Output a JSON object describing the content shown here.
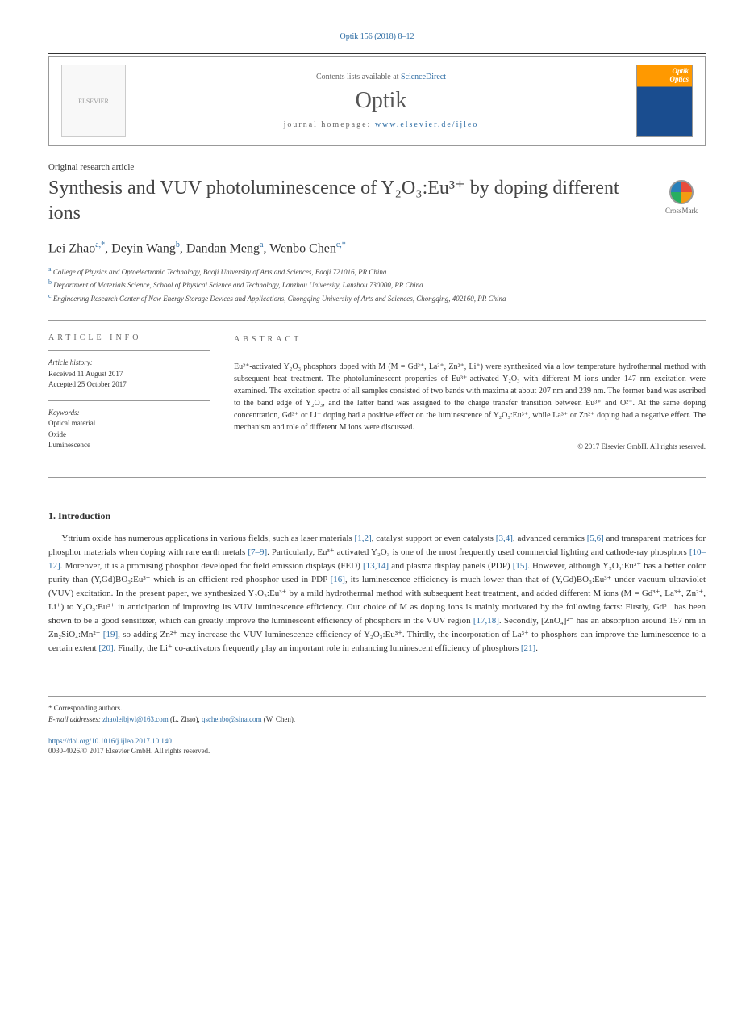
{
  "top_reference": "Optik 156 (2018) 8–12",
  "header": {
    "contents_text": "Contents lists available at ",
    "contents_link": "ScienceDirect",
    "journal": "Optik",
    "homepage_label": "journal homepage: ",
    "homepage_url": "www.elsevier.de/ijleo"
  },
  "article_type": "Original research article",
  "title": "Synthesis and VUV photoluminescence of Y₂O₃:Eu³⁺ by doping different ions",
  "crossmark_label": "CrossMark",
  "authors_html": "Lei Zhao|a,*|, Deyin Wang|b|, Dandan Meng|a|, Wenbo Chen|c,*|",
  "authors": [
    {
      "name": "Lei Zhao",
      "sup": "a,*"
    },
    {
      "name": "Deyin Wang",
      "sup": "b"
    },
    {
      "name": "Dandan Meng",
      "sup": "a"
    },
    {
      "name": "Wenbo Chen",
      "sup": "c,*"
    }
  ],
  "affiliations": [
    {
      "sup": "a",
      "text": "College of Physics and Optoelectronic Technology, Baoji University of Arts and Sciences, Baoji 721016, PR China"
    },
    {
      "sup": "b",
      "text": "Department of Materials Science, School of Physical Science and Technology, Lanzhou University, Lanzhou 730000, PR China"
    },
    {
      "sup": "c",
      "text": "Engineering Research Center of New Energy Storage Devices and Applications, Chongqing University of Arts and Sciences, Chongqing, 402160, PR China"
    }
  ],
  "article_info": {
    "header": "ARTICLE INFO",
    "history_label": "Article history:",
    "received": "Received 11 August 2017",
    "accepted": "Accepted 25 October 2017",
    "keywords_label": "Keywords:",
    "keywords": [
      "Optical material",
      "Oxide",
      "Luminescence"
    ]
  },
  "abstract": {
    "header": "ABSTRACT",
    "text": "Eu³⁺-activated Y₂O₃ phosphors doped with M (M = Gd³⁺, La³⁺, Zn²⁺, Li⁺) were synthesized via a low temperature hydrothermal method with subsequent heat treatment. The photoluminescent properties of Eu³⁺-activated Y₂O₃ with different M ions under 147 nm excitation were examined. The excitation spectra of all samples consisted of two bands with maxima at about 207 nm and 239 nm. The former band was ascribed to the band edge of Y₂O₃, and the latter band was assigned to the charge transfer transition between Eu³⁺ and O²⁻. At the same doping concentration, Gd³⁺ or Li⁺ doping had a positive effect on the luminescence of Y₂O₃:Eu³⁺, while La³⁺ or Zn²⁺ doping had a negative effect. The mechanism and role of different M ions were discussed.",
    "copyright": "© 2017 Elsevier GmbH. All rights reserved."
  },
  "section1": {
    "heading": "1. Introduction",
    "para1": "Yttrium oxide has numerous applications in various fields, such as laser materials [1,2], catalyst support or even catalysts [3,4], advanced ceramics [5,6] and transparent matrices for phosphor materials when doping with rare earth metals [7–9]. Particularly, Eu³⁺ activated Y₂O₃ is one of the most frequently used commercial lighting and cathode-ray phosphors [10–12]. Moreover, it is a promising phosphor developed for field emission displays (FED) [13,14] and plasma display panels (PDP) [15]. However, although Y₂O₃:Eu³⁺ has a better color purity than (Y,Gd)BO₃:Eu³⁺ which is an efficient red phosphor used in PDP [16], its luminescence efficiency is much lower than that of (Y,Gd)BO₃:Eu³⁺ under vacuum ultraviolet (VUV) excitation. In the present paper, we synthesized Y₂O₃:Eu³⁺ by a mild hydrothermal method with subsequent heat treatment, and added different M ions (M = Gd³⁺, La³⁺, Zn²⁺, Li⁺) to Y₂O₃:Eu³⁺ in anticipation of improving its VUV luminescence efficiency. Our choice of M as doping ions is mainly motivated by the following facts: Firstly, Gd³⁺ has been shown to be a good sensitizer, which can greatly improve the luminescent efficiency of phosphors in the VUV region [17,18]. Secondly, [ZnO₄]²⁻ has an absorption around 157 nm in Zn₂SiO₄:Mn²⁺ [19], so adding Zn²⁺ may increase the VUV luminescence efficiency of Y₂O₃:Eu³⁺. Thirdly, the incorporation of La³⁺ to phosphors can improve the luminescence to a certain extent [20]. Finally, the Li⁺ co-activators frequently play an important role in enhancing luminescent efficiency of phosphors [21].",
    "refs": [
      "1,2",
      "3,4",
      "5,6",
      "7–9",
      "10–12",
      "13,14",
      "15",
      "16",
      "17,18",
      "19",
      "20",
      "21"
    ]
  },
  "footnotes": {
    "corr_label": "* Corresponding authors.",
    "email_label": "E-mail addresses: ",
    "email1": "zhaoleibjwl@163.com",
    "email1_who": " (L. Zhao), ",
    "email2": "qschenbo@sina.com",
    "email2_who": " (W. Chen)."
  },
  "doi": "https://doi.org/10.1016/j.ijleo.2017.10.140",
  "issn_line": "0030-4026/© 2017 Elsevier GmbH. All rights reserved.",
  "colors": {
    "link": "#2e6da4",
    "text": "#333333",
    "muted": "#666666",
    "rule": "#999999"
  }
}
